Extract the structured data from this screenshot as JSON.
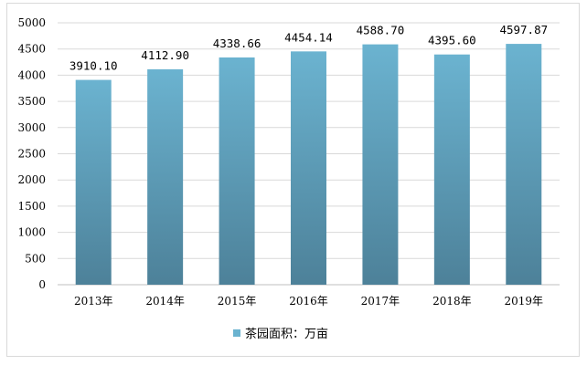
{
  "chart_data": {
    "type": "bar",
    "categories": [
      "2013年",
      "2014年",
      "2015年",
      "2016年",
      "2017年",
      "2018年",
      "2019年"
    ],
    "series": [
      {
        "name": "茶园面积：万亩",
        "values": [
          3910.1,
          4112.9,
          4338.66,
          4454.14,
          4588.7,
          4395.6,
          4597.87
        ],
        "labels": [
          "3910.10",
          "4112.90",
          "4338.66",
          "4454.14",
          "4588.70",
          "4395.60",
          "4597.87"
        ]
      }
    ],
    "ylim": [
      0,
      5000
    ],
    "yticks": [
      "0",
      "500",
      "1000",
      "1500",
      "2000",
      "2500",
      "3000",
      "3500",
      "4000",
      "4500",
      "5000"
    ],
    "grid": true,
    "legend_position": "bottom",
    "colors": {
      "bar_top": "#6bb3d0",
      "bar_bottom": "#4d8199",
      "grid": "#d9d9d9",
      "axis": "#bfbfbf"
    }
  }
}
